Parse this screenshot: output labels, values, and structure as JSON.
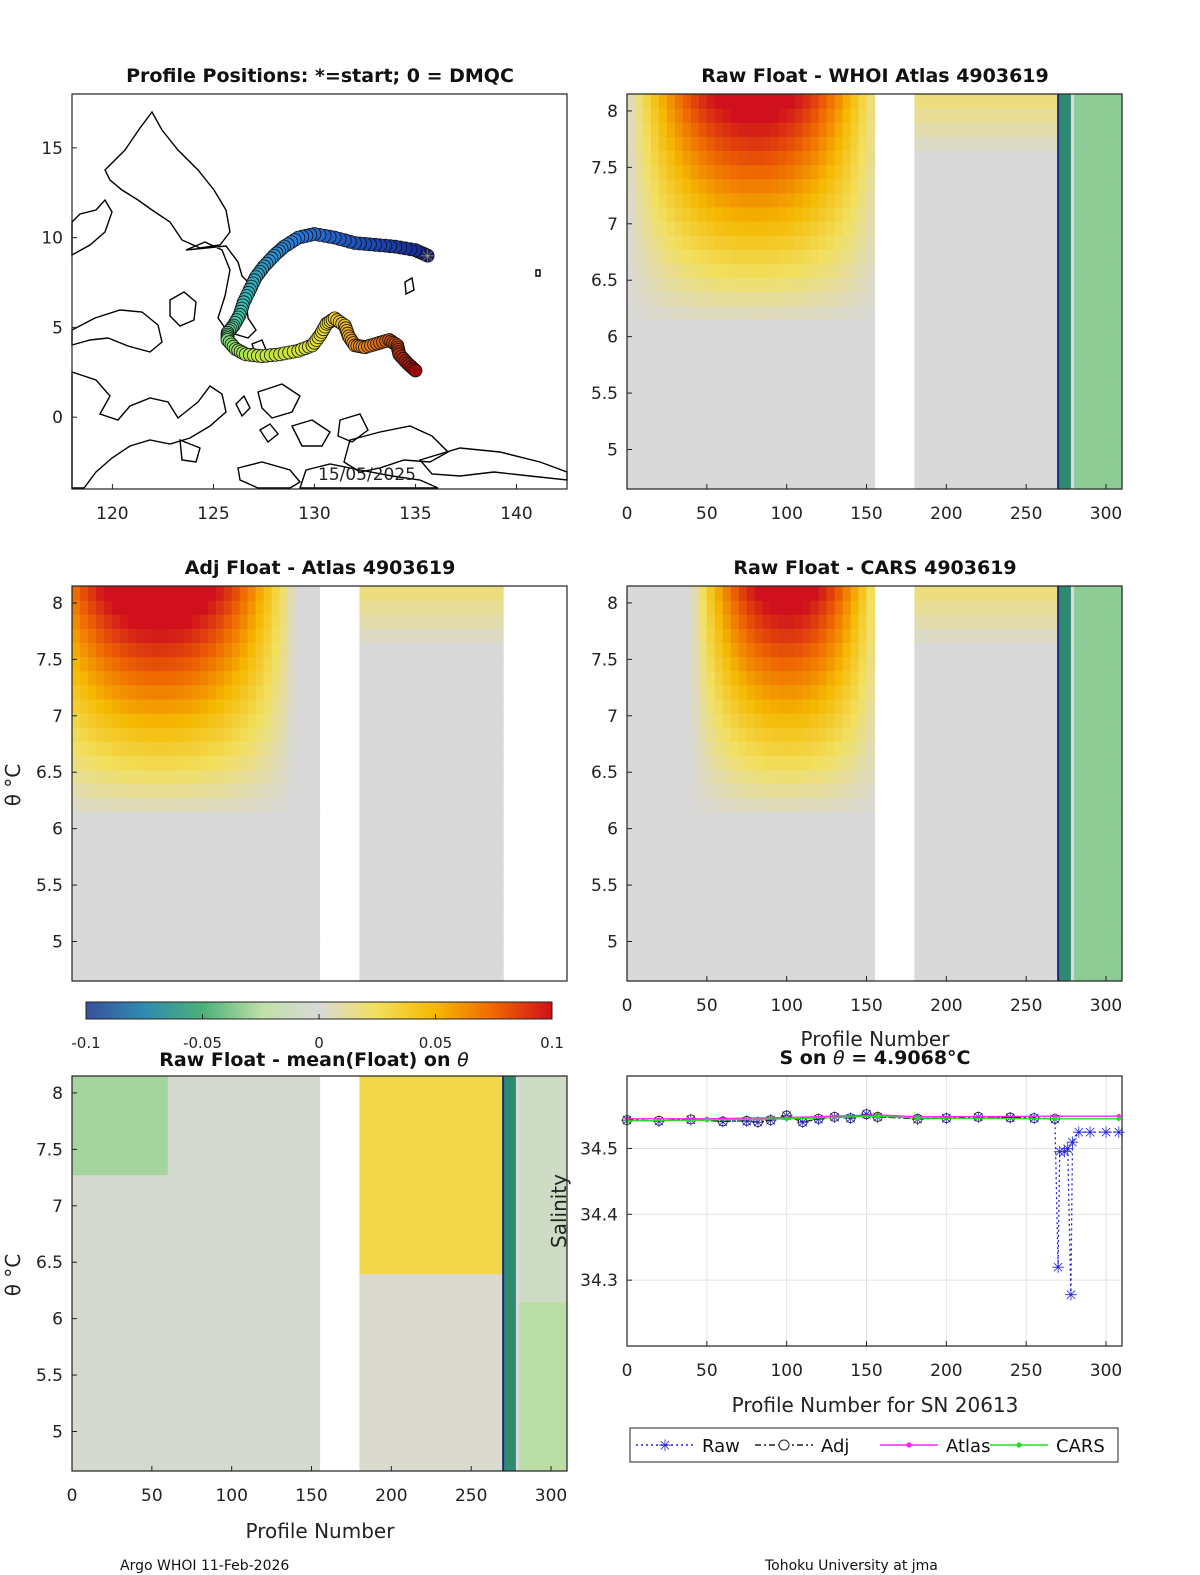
{
  "chart_data": [
    {
      "id": "positions",
      "type": "scatter",
      "title": "Profile Positions: *=start; 0 = DMQC",
      "xlim": [
        118,
        142.5
      ],
      "ylim": [
        -4,
        18
      ],
      "xticks": [
        120,
        125,
        130,
        135,
        140
      ],
      "yticks": [
        0,
        5,
        10,
        15
      ],
      "date_label": "15/05/2025",
      "track": [
        [
          135.6,
          9.0
        ],
        [
          135.0,
          9.3
        ],
        [
          134.0,
          9.5
        ],
        [
          133.0,
          9.6
        ],
        [
          132.0,
          9.7
        ],
        [
          131.0,
          10.0
        ],
        [
          130.0,
          10.2
        ],
        [
          129.2,
          10.0
        ],
        [
          128.5,
          9.5
        ],
        [
          128.0,
          9.0
        ],
        [
          127.5,
          8.4
        ],
        [
          127.1,
          7.8
        ],
        [
          126.8,
          7.1
        ],
        [
          126.5,
          6.4
        ],
        [
          126.3,
          5.7
        ],
        [
          126.0,
          5.1
        ],
        [
          125.7,
          4.7
        ],
        [
          125.7,
          4.3
        ],
        [
          126.1,
          3.8
        ],
        [
          126.6,
          3.5
        ],
        [
          127.4,
          3.4
        ],
        [
          128.3,
          3.5
        ],
        [
          129.2,
          3.7
        ],
        [
          129.9,
          4.0
        ],
        [
          130.3,
          4.6
        ],
        [
          130.6,
          5.2
        ],
        [
          131.0,
          5.5
        ],
        [
          131.5,
          5.1
        ],
        [
          131.7,
          4.5
        ],
        [
          132.0,
          4.0
        ],
        [
          132.5,
          3.9
        ],
        [
          133.1,
          4.1
        ],
        [
          133.7,
          4.3
        ],
        [
          134.1,
          4.0
        ],
        [
          134.2,
          3.5
        ],
        [
          134.6,
          3.0
        ],
        [
          135.0,
          2.6
        ]
      ]
    },
    {
      "id": "whoi",
      "type": "heatmap",
      "title": "Raw Float - WHOI Atlas  4903619",
      "xlim": [
        0,
        310
      ],
      "ylim": [
        4.65,
        8.15
      ],
      "xticks": [
        0,
        50,
        100,
        150,
        200,
        250,
        300
      ],
      "yticks": [
        5,
        5.5,
        6,
        6.5,
        7,
        7.5,
        8
      ],
      "ytick_labels": [
        "5",
        "5.5",
        "6",
        "6.5",
        "7",
        "7.5",
        "8"
      ]
    },
    {
      "id": "adj",
      "type": "heatmap",
      "title": "Adj Float - Atlas  4903619",
      "xlim": [
        0,
        310
      ],
      "ylim": [
        4.65,
        8.15
      ],
      "yticks": [
        5,
        5.5,
        6,
        6.5,
        7,
        7.5,
        8
      ],
      "ytick_labels": [
        "5",
        "5.5",
        "6",
        "6.5",
        "7",
        "7.5",
        "8"
      ]
    },
    {
      "id": "cars",
      "type": "heatmap",
      "title": "Raw Float - CARS  4903619",
      "xlim": [
        0,
        310
      ],
      "ylim": [
        4.65,
        8.15
      ],
      "xticks": [
        0,
        50,
        100,
        150,
        200,
        250,
        300
      ],
      "yticks": [
        5,
        5.5,
        6,
        6.5,
        7,
        7.5,
        8
      ],
      "ytick_labels": [
        "5",
        "5.5",
        "6",
        "6.5",
        "7",
        "7.5",
        "8"
      ]
    },
    {
      "id": "mean",
      "type": "heatmap",
      "title_prefix": "Raw Float - mean(Float) on ",
      "title_sym": "θ",
      "xlim": [
        0,
        310
      ],
      "ylim": [
        4.65,
        8.15
      ],
      "xticks": [
        0,
        50,
        100,
        150,
        200,
        250,
        300
      ],
      "yticks": [
        5,
        5.5,
        6,
        6.5,
        7,
        7.5,
        8
      ],
      "ytick_labels": [
        "5",
        "5.5",
        "6",
        "6.5",
        "7",
        "7.5",
        "8"
      ]
    },
    {
      "id": "salinity",
      "type": "line",
      "title_prefix": "S on ",
      "title_sym": "θ",
      "title_suffix": " = 4.9068°C",
      "xlabel": "Profile Number for SN 20613",
      "ylabel": "Salinity",
      "xlim": [
        0,
        310
      ],
      "ylim": [
        34.2,
        34.61
      ],
      "xticks": [
        0,
        50,
        100,
        150,
        200,
        250,
        300
      ],
      "yticks": [
        34.3,
        34.4,
        34.5
      ],
      "ytick_labels": [
        "34.3",
        "34.4",
        "34.5"
      ],
      "legend": [
        "Raw",
        "Adj",
        "Atlas",
        "CARS"
      ],
      "series": [
        {
          "name": "Raw",
          "color": "#2222dd",
          "points": [
            [
              0,
              34.543
            ],
            [
              20,
              34.542
            ],
            [
              40,
              34.544
            ],
            [
              60,
              34.541
            ],
            [
              75,
              34.542
            ],
            [
              82,
              34.54
            ],
            [
              90,
              34.543
            ],
            [
              100,
              34.55
            ],
            [
              110,
              34.54
            ],
            [
              120,
              34.545
            ],
            [
              130,
              34.548
            ],
            [
              140,
              34.546
            ],
            [
              150,
              34.552
            ],
            [
              157,
              34.548
            ],
            [
              182,
              34.545
            ],
            [
              200,
              34.546
            ],
            [
              220,
              34.548
            ],
            [
              240,
              34.547
            ],
            [
              255,
              34.546
            ],
            [
              268,
              34.545
            ],
            [
              270,
              34.32
            ],
            [
              271,
              34.495
            ],
            [
              274,
              34.495
            ],
            [
              276,
              34.5
            ],
            [
              278,
              34.278
            ],
            [
              279,
              34.51
            ],
            [
              283,
              34.525
            ],
            [
              290,
              34.525
            ],
            [
              300,
              34.525
            ],
            [
              308,
              34.525
            ]
          ]
        },
        {
          "name": "Adj",
          "color": "#222222",
          "points": [
            [
              0,
              34.543
            ],
            [
              20,
              34.542
            ],
            [
              40,
              34.544
            ],
            [
              60,
              34.541
            ],
            [
              75,
              34.542
            ],
            [
              82,
              34.54
            ],
            [
              90,
              34.543
            ],
            [
              100,
              34.55
            ],
            [
              110,
              34.54
            ],
            [
              120,
              34.545
            ],
            [
              130,
              34.548
            ],
            [
              140,
              34.546
            ],
            [
              150,
              34.552
            ],
            [
              157,
              34.548
            ],
            [
              182,
              34.545
            ],
            [
              200,
              34.546
            ],
            [
              220,
              34.548
            ],
            [
              240,
              34.547
            ],
            [
              255,
              34.546
            ],
            [
              268,
              34.545
            ]
          ]
        },
        {
          "name": "Atlas",
          "color": "#ff22ff",
          "points": [
            [
              0,
              34.545
            ],
            [
              50,
              34.545
            ],
            [
              100,
              34.547
            ],
            [
              157,
              34.551
            ],
            [
              182,
              34.548
            ],
            [
              268,
              34.549
            ],
            [
              308,
              34.549
            ]
          ]
        },
        {
          "name": "CARS",
          "color": "#22dd22",
          "points": [
            [
              0,
              34.542
            ],
            [
              50,
              34.543
            ],
            [
              100,
              34.545
            ],
            [
              157,
              34.549
            ],
            [
              182,
              34.546
            ],
            [
              268,
              34.545
            ],
            [
              308,
              34.545
            ]
          ]
        }
      ]
    }
  ],
  "colorbar": {
    "min": -0.1,
    "max": 0.1,
    "ticks": [
      -0.1,
      -0.05,
      0,
      0.05,
      0.1
    ],
    "tick_labels": [
      "-0.1",
      "-0.05",
      "0",
      "0.05",
      "0.1"
    ]
  },
  "labels": {
    "profile_number": "Profile Number",
    "theta_c": "θ °C"
  },
  "footer": {
    "left": "Argo WHOI 11-Feb-2026",
    "right": "Tohoku University at jma"
  }
}
